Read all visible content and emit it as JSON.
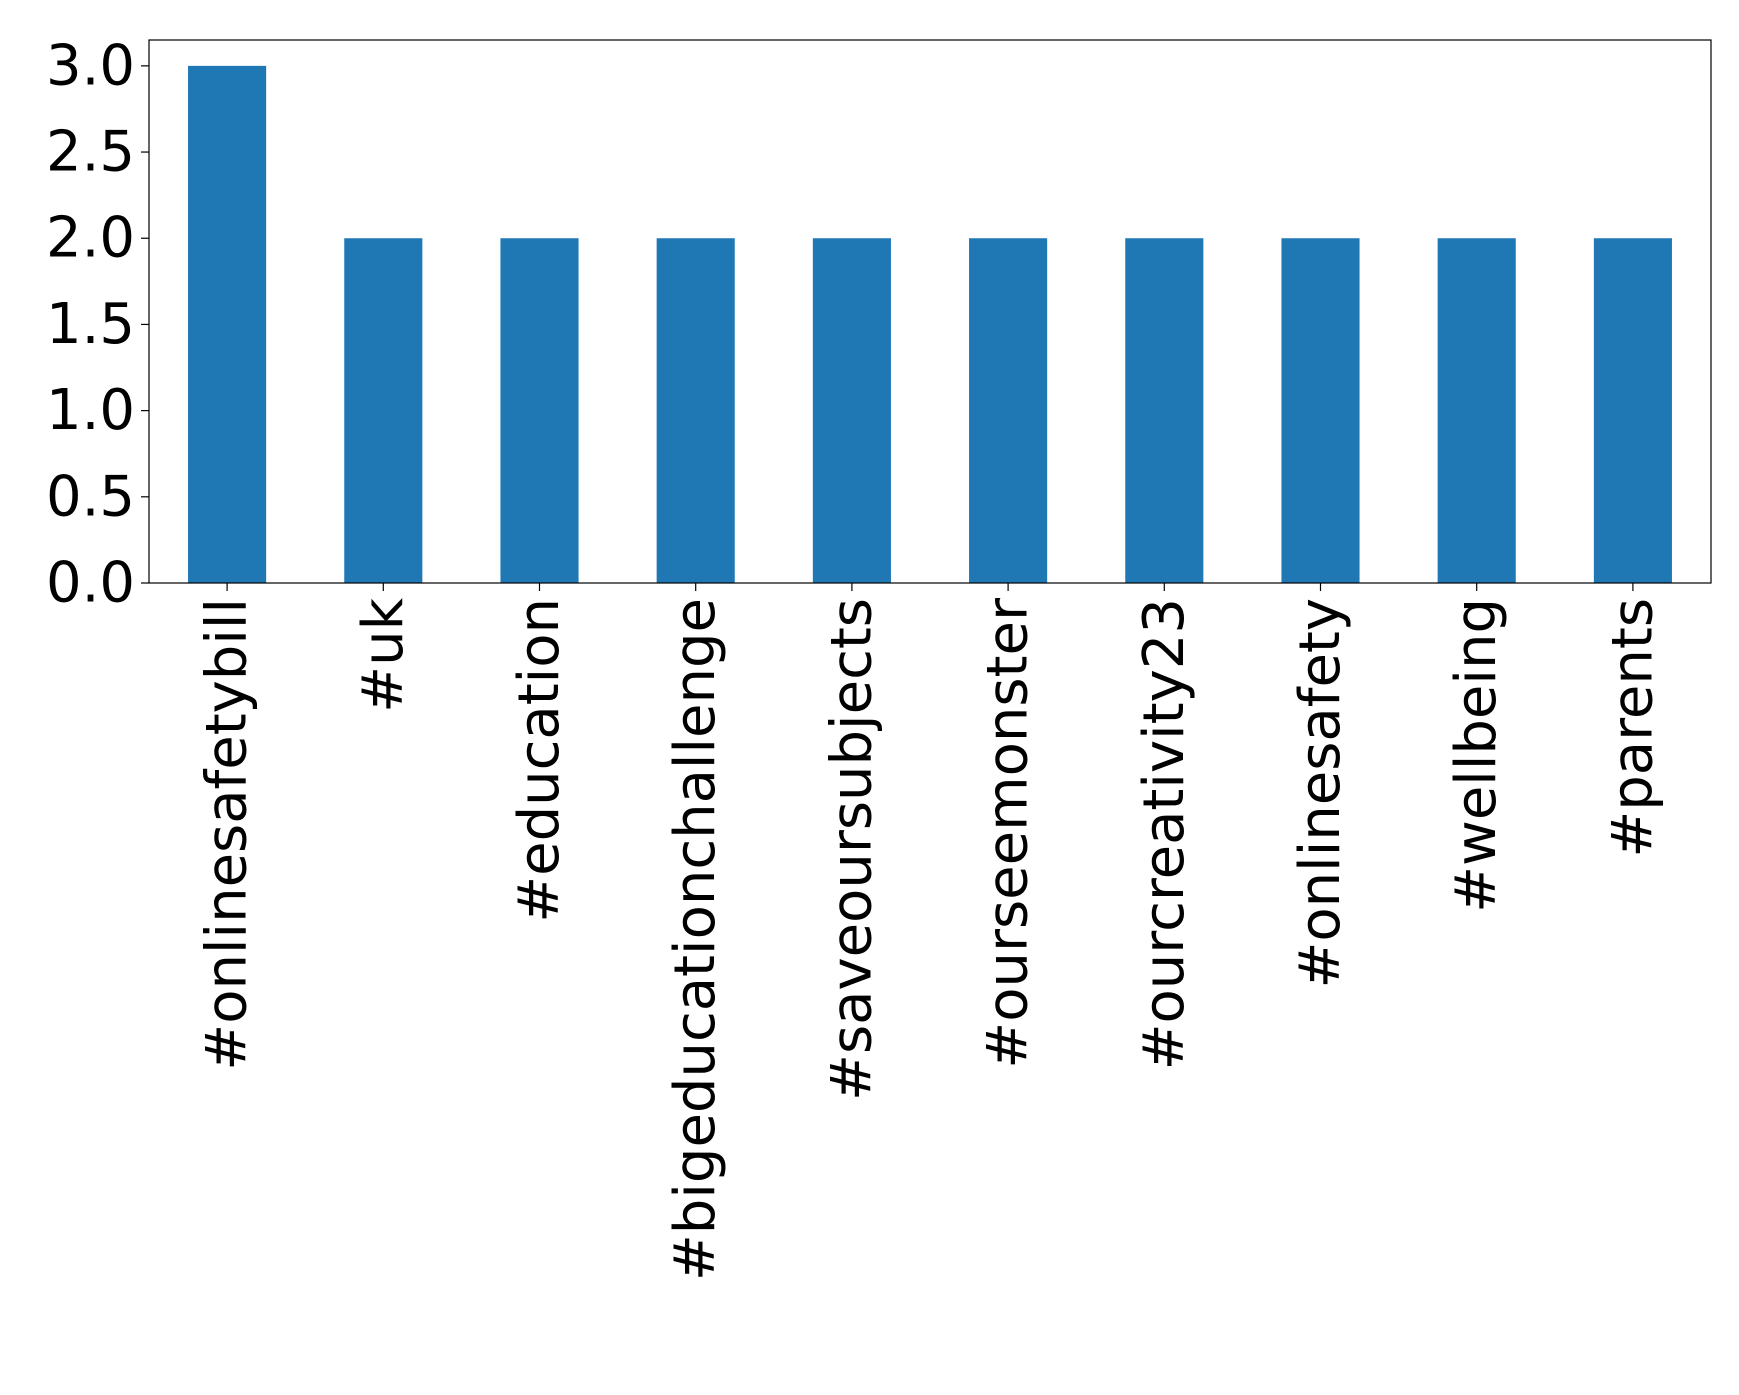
{
  "chart_data": {
    "type": "bar",
    "title": "",
    "xlabel": "",
    "ylabel": "",
    "categories": [
      "#onlinesafetybill",
      "#uk",
      "#education",
      "#bigeducationchallenge",
      "#saveoursubjects",
      "#ourseemonster",
      "#ourcreativity23",
      "#onlinesafety",
      "#wellbeing",
      "#parents"
    ],
    "values": [
      3,
      2,
      2,
      2,
      2,
      2,
      2,
      2,
      2,
      2
    ],
    "ylim": [
      0,
      3.15
    ],
    "yticks": [
      "0.0",
      "0.5",
      "1.0",
      "1.5",
      "2.0",
      "2.5",
      "3.0"
    ],
    "bar_color": "#1f77b4",
    "grid": false,
    "legend": "none"
  }
}
